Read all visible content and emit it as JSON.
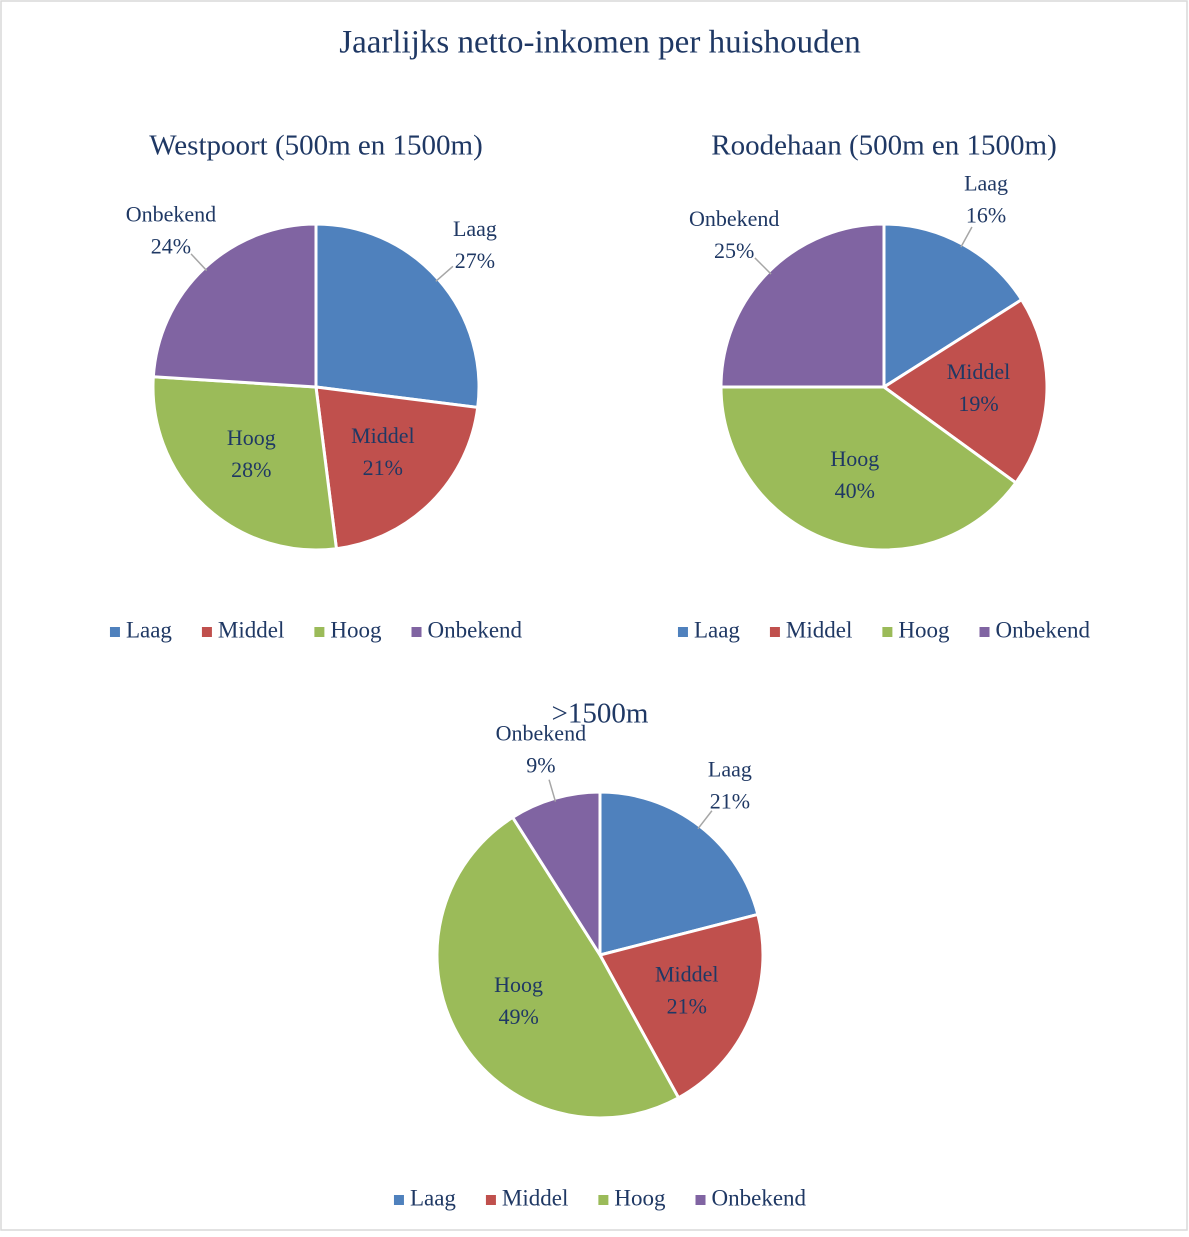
{
  "title": "Jaarlijks netto-inkomen per huishouden",
  "chart_data": [
    {
      "type": "pie",
      "title": "Westpoort (500m en 1500m)",
      "categories": [
        "Laag",
        "Middel",
        "Hoog",
        "Onbekend"
      ],
      "values": [
        27,
        21,
        28,
        24
      ],
      "value_labels": [
        "27%",
        "21%",
        "28%",
        "24%"
      ],
      "colors": [
        "#4f81bd",
        "#c0504d",
        "#9bbb59",
        "#8064a2"
      ],
      "legend": "bottom"
    },
    {
      "type": "pie",
      "title": "Roodehaan (500m en 1500m)",
      "categories": [
        "Laag",
        "Middel",
        "Hoog",
        "Onbekend"
      ],
      "values": [
        16,
        19,
        40,
        25
      ],
      "value_labels": [
        "16%",
        "19%",
        "40%",
        "25%"
      ],
      "colors": [
        "#4f81bd",
        "#c0504d",
        "#9bbb59",
        "#8064a2"
      ],
      "legend": "bottom"
    },
    {
      "type": "pie",
      "title": ">1500m",
      "categories": [
        "Laag",
        "Middel",
        "Hoog",
        "Onbekend"
      ],
      "values": [
        21,
        21,
        49,
        9
      ],
      "value_labels": [
        "21%",
        "21%",
        "49%",
        "9%"
      ],
      "colors": [
        "#4f81bd",
        "#c0504d",
        "#9bbb59",
        "#8064a2"
      ],
      "legend": "bottom"
    }
  ]
}
